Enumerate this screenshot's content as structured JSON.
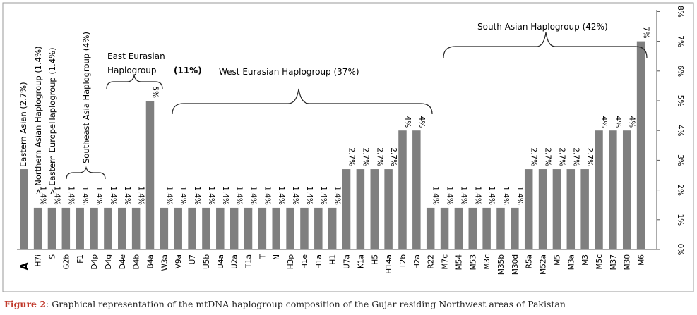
{
  "chart_data": {
    "type": "bar",
    "panel_marker": "A",
    "categories": [
      "",
      "H7i",
      "S",
      "G2b",
      "F1",
      "D4p",
      "D4g",
      "D4e",
      "D4b",
      "B4a",
      "W3a",
      "V9a",
      "U7",
      "U5b",
      "U4a",
      "U2a",
      "T1a",
      "T",
      "N",
      "H3p",
      "H1e",
      "H1a",
      "H1",
      "U7a",
      "K1a",
      "H5",
      "H14a",
      "T2b",
      "H2a",
      "R22",
      "M7c",
      "M54",
      "M53",
      "M3c",
      "M35b",
      "M30d",
      "R5a",
      "M52a",
      "M5",
      "M3a",
      "M3",
      "M5c",
      "M37",
      "M30",
      "M6"
    ],
    "values": [
      2.7,
      1.4,
      1.4,
      1.4,
      1.4,
      1.4,
      1.4,
      1.4,
      1.4,
      5,
      1.4,
      1.4,
      1.4,
      1.4,
      1.4,
      1.4,
      1.4,
      1.4,
      1.4,
      1.4,
      1.4,
      1.4,
      1.4,
      2.7,
      2.7,
      2.7,
      2.7,
      4,
      4,
      1.4,
      1.4,
      1.4,
      1.4,
      1.4,
      1.4,
      1.4,
      2.7,
      2.7,
      2.7,
      2.7,
      2.7,
      4,
      4,
      4,
      7
    ],
    "value_labels": [
      "",
      "1.4%",
      "1.4%",
      "1.4%",
      "1.4%",
      "1.4%",
      "1.4%",
      "1.4%",
      "1.4%",
      "5%",
      "1.4%",
      "1.4%",
      "1.4%",
      "1.4%",
      "1.4%",
      "1.4%",
      "1.4%",
      "1.4%",
      "1.4%",
      "1.4%",
      "1.4%",
      "1.4%",
      "1.4%",
      "2.7%",
      "2.7%",
      "2.7%",
      "2.7%",
      "4%",
      "4%",
      "1.4%",
      "1.4%",
      "1.4%",
      "1.4%",
      "1.4%",
      "1.4%",
      "1.4%",
      "2.7%",
      "2.7%",
      "2.7%",
      "2.7%",
      "2.7%",
      "4%",
      "4%",
      "4%",
      "7%"
    ],
    "y_ticks": [
      "0%",
      "1%",
      "2%",
      "3%",
      "4%",
      "5%",
      "6%",
      "7%",
      "8%"
    ],
    "ylim": [
      0,
      8
    ],
    "y_axis_side": "right",
    "bar_color": "#7f7f7f",
    "vertical_annotations": [
      "Eastern Asian (2.7%)",
      "> Northern Asian Haplogroup (1.4%)",
      "> Eastern EuropeHaplogroup (1.4%)",
      "Southeast Asia Haplogroup (4%)"
    ],
    "group_annotations": {
      "east_eurasian_line1": "East Eurasian",
      "east_eurasian_line2": "Haplogroup",
      "east_eurasian_pct": "(11%)",
      "west_eurasian": "West Eurasian Haplogroup (37%)",
      "south_asian": "South Asian Haplogroup (42%)"
    }
  },
  "caption": {
    "label": "Figure 2",
    "text": ": Graphical representation of the mtDNA haplogroup composition of the Gujar residing Northwest areas of Pakistan"
  }
}
